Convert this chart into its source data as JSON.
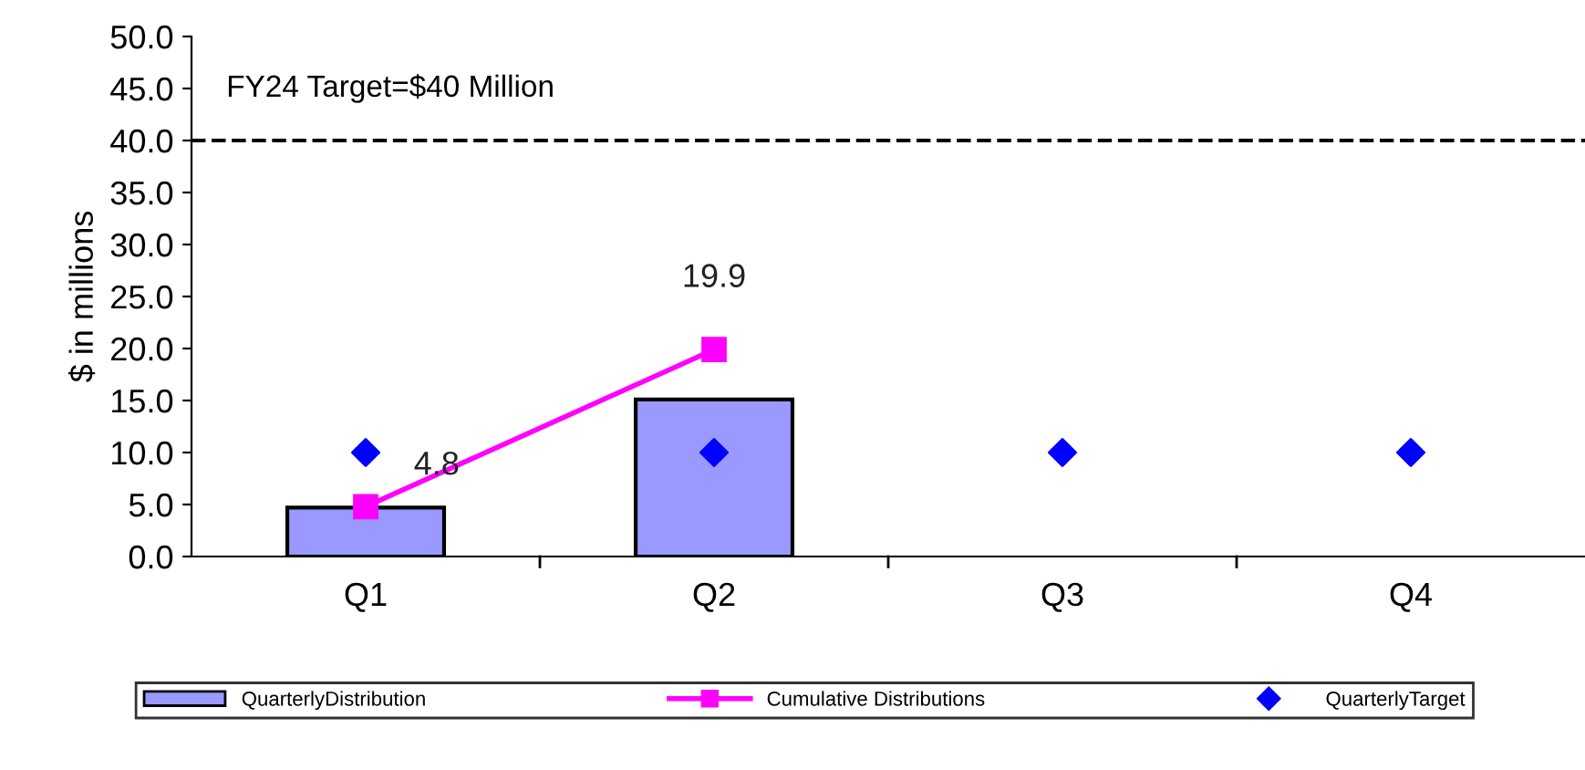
{
  "chart_data": {
    "type": "bar",
    "ylabel": "$ in millions",
    "categories": [
      "Q1",
      "Q2",
      "Q3",
      "Q4"
    ],
    "series": [
      {
        "name": "QuarterlyDistribution",
        "color": "#9999ff",
        "values": [
          4.7,
          15.1,
          null,
          null
        ]
      },
      {
        "name": "Cumulative Distributions",
        "type": "line",
        "color": "#ff00ff",
        "marker": "square",
        "values": [
          4.8,
          19.9,
          null,
          null
        ],
        "value_labels": [
          "4.8",
          "19.9",
          null,
          null
        ]
      },
      {
        "name": "QuarterlyTarget",
        "type": "scatter",
        "color": "#0000ff",
        "marker": "diamond",
        "values": [
          10,
          10,
          10,
          10
        ]
      }
    ],
    "ylim": [
      0,
      50
    ],
    "yticks": [
      {
        "value": 0,
        "label": "0.0"
      },
      {
        "value": 5,
        "label": "5.0"
      },
      {
        "value": 10,
        "label": "10.0"
      },
      {
        "value": 15,
        "label": "15.0"
      },
      {
        "value": 20,
        "label": "20.0"
      },
      {
        "value": 25,
        "label": "25.0"
      },
      {
        "value": 30,
        "label": "30.0"
      },
      {
        "value": 35,
        "label": "35.0"
      },
      {
        "value": 40,
        "label": "40.0"
      },
      {
        "value": 45,
        "label": "45.0"
      },
      {
        "value": 50,
        "label": "50.0"
      }
    ],
    "ref_lines": [
      {
        "axis": "y",
        "value": 40,
        "label": "FY24 Target=$40 Million",
        "color": "#000000",
        "line_style": "dashed"
      }
    ],
    "grid": false,
    "legend": "bottom"
  }
}
